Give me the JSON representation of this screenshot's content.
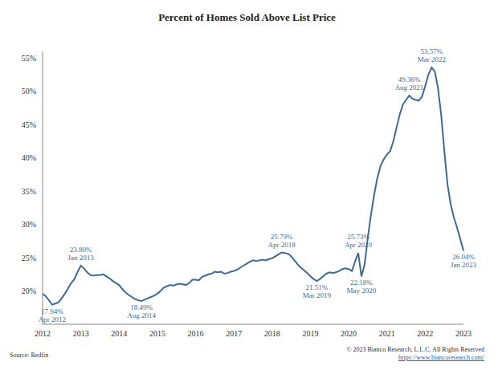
{
  "chart_data": {
    "type": "line",
    "title": "Percent of Homes Sold Above List Price",
    "source": "Source: Redfin",
    "copyright": "© 2023 Bianco Research, L.L.C. All Rights Reserved",
    "url": "https://www.biancoresearch.com/",
    "categories": [
      "2012",
      null,
      null,
      null,
      null,
      null,
      null,
      null,
      null,
      null,
      null,
      null,
      "2013",
      null,
      null,
      null,
      null,
      null,
      null,
      null,
      null,
      null,
      null,
      null,
      "2014",
      null,
      null,
      null,
      null,
      null,
      null,
      null,
      null,
      null,
      null,
      null,
      "2015",
      null,
      null,
      null,
      null,
      null,
      null,
      null,
      null,
      null,
      null,
      null,
      "2016",
      null,
      null,
      null,
      null,
      null,
      null,
      null,
      null,
      null,
      null,
      null,
      "2017",
      null,
      null,
      null,
      null,
      null,
      null,
      null,
      null,
      null,
      null,
      null,
      "2018",
      null,
      null,
      null,
      null,
      null,
      null,
      null,
      null,
      null,
      null,
      null,
      "2019",
      null,
      null,
      null,
      null,
      null,
      null,
      null,
      null,
      null,
      null,
      null,
      "2020",
      null,
      null,
      null,
      null,
      null,
      null,
      null,
      null,
      null,
      null,
      null,
      "2021",
      null,
      null,
      null,
      null,
      null,
      null,
      null,
      null,
      null,
      null,
      null,
      "2022",
      null,
      null,
      null,
      null,
      null,
      null,
      null,
      null,
      null,
      null,
      null,
      "2023"
    ],
    "values": [
      19.6,
      19.2,
      18.6,
      17.94,
      18.1,
      18.3,
      18.9,
      19.6,
      20.4,
      21.2,
      21.8,
      22.9,
      23.8,
      23.4,
      22.8,
      22.4,
      22.3,
      22.4,
      22.4,
      22.5,
      22.2,
      21.9,
      21.5,
      21.2,
      20.9,
      20.3,
      19.8,
      19.4,
      19.1,
      18.8,
      18.6,
      18.49,
      18.7,
      18.9,
      19.1,
      19.3,
      19.6,
      20.0,
      20.5,
      20.7,
      20.9,
      20.8,
      21.0,
      21.1,
      21.0,
      20.9,
      21.2,
      21.7,
      21.7,
      21.6,
      22.1,
      22.3,
      22.5,
      22.6,
      22.9,
      22.8,
      22.9,
      22.6,
      22.7,
      22.9,
      23.0,
      23.2,
      23.5,
      23.8,
      24.1,
      24.4,
      24.6,
      24.5,
      24.6,
      24.7,
      24.6,
      24.8,
      24.9,
      25.2,
      25.5,
      25.79,
      25.7,
      25.6,
      25.2,
      24.6,
      24.0,
      23.5,
      23.1,
      22.7,
      22.2,
      21.8,
      21.51,
      21.8,
      22.2,
      22.6,
      22.8,
      22.7,
      22.8,
      23.0,
      23.3,
      23.4,
      23.3,
      23.0,
      24.4,
      25.73,
      22.18,
      24.0,
      28.0,
      31.5,
      34.5,
      37.0,
      38.8,
      39.8,
      40.5,
      41.0,
      42.5,
      44.5,
      46.5,
      48.0,
      48.7,
      49.36,
      48.9,
      48.7,
      48.6,
      49.2,
      50.8,
      52.5,
      53.57,
      53.0,
      50.5,
      46.5,
      41.0,
      36.0,
      33.0,
      31.0,
      29.5,
      27.8,
      26.04
    ],
    "color": "#3d6a97",
    "ylim": [
      15,
      56
    ],
    "yticks": [
      {
        "value": 20,
        "label": "20%"
      },
      {
        "value": 25,
        "label": "25%"
      },
      {
        "value": 30,
        "label": "30%"
      },
      {
        "value": 35,
        "label": "35%"
      },
      {
        "value": 40,
        "label": "40%"
      },
      {
        "value": 45,
        "label": "45%"
      },
      {
        "value": 50,
        "label": "50%"
      },
      {
        "value": 55,
        "label": "55%"
      }
    ],
    "grid": false,
    "annotations": [
      {
        "index": 3,
        "value": 17.94,
        "label": "17.94%",
        "date": "Apr 2012"
      },
      {
        "index": 12,
        "value": 23.8,
        "label": "23.80%",
        "date": "Jan 2013"
      },
      {
        "index": 31,
        "value": 18.49,
        "label": "18.49%",
        "date": "Aug 2014"
      },
      {
        "index": 75,
        "value": 25.79,
        "label": "25.79%",
        "date": "Apr 2018"
      },
      {
        "index": 86,
        "value": 21.51,
        "label": "21.51%",
        "date": "Mar 2019"
      },
      {
        "index": 99,
        "value": 25.73,
        "label": "25.73%",
        "date": "Apr 2020"
      },
      {
        "index": 100,
        "value": 22.18,
        "label": "22.18%",
        "date": "May 2020"
      },
      {
        "index": 115,
        "value": 49.36,
        "label": "49.36%",
        "date": "Aug 2021"
      },
      {
        "index": 122,
        "value": 53.57,
        "label": "53.57%",
        "date": "Mar 2022"
      },
      {
        "index": 132,
        "value": 26.04,
        "label": "26.04%",
        "date": "Jan 2023"
      }
    ]
  }
}
